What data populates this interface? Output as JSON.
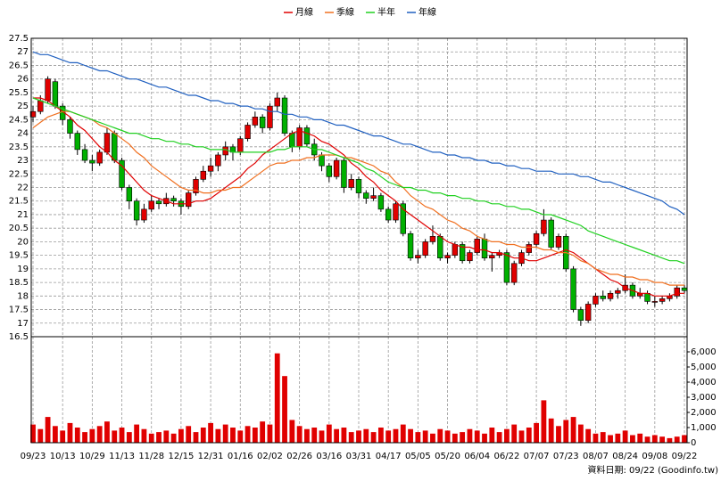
{
  "chart_data": {
    "type": "candlestick",
    "legend": "top",
    "grid": true,
    "up_color": "#e00000",
    "down_color": "#00b000",
    "categories": [
      "09/23",
      null,
      null,
      null,
      "10/13",
      null,
      null,
      null,
      "10/29",
      null,
      null,
      null,
      "11/13",
      null,
      null,
      null,
      "11/28",
      null,
      null,
      null,
      "12/15",
      null,
      null,
      null,
      "12/31",
      null,
      null,
      null,
      "01/16",
      null,
      null,
      null,
      "02/02",
      null,
      null,
      null,
      "02/26",
      null,
      null,
      null,
      "03/16",
      null,
      null,
      null,
      "03/31",
      null,
      null,
      null,
      "04/17",
      null,
      null,
      null,
      "05/05",
      null,
      null,
      null,
      "05/20",
      null,
      null,
      null,
      "06/04",
      null,
      null,
      null,
      "06/22",
      null,
      null,
      null,
      "07/07",
      null,
      null,
      null,
      "07/23",
      null,
      null,
      null,
      "08/07",
      null,
      null,
      null,
      "08/24",
      null,
      null,
      null,
      "09/08",
      null,
      null,
      null,
      "09/22"
    ],
    "ohlc": [
      [
        24.6,
        25.0,
        24.4,
        24.8
      ],
      [
        24.8,
        25.4,
        24.7,
        25.2
      ],
      [
        25.2,
        26.1,
        25.1,
        26.0
      ],
      [
        25.9,
        26.0,
        24.9,
        25.0
      ],
      [
        25.0,
        25.1,
        24.3,
        24.5
      ],
      [
        24.5,
        24.6,
        23.8,
        24.0
      ],
      [
        24.0,
        24.1,
        23.2,
        23.4
      ],
      [
        23.4,
        23.6,
        22.9,
        23.0
      ],
      [
        23.0,
        23.2,
        22.6,
        22.9
      ],
      [
        22.9,
        23.4,
        22.8,
        23.3
      ],
      [
        23.3,
        24.2,
        23.2,
        24.0
      ],
      [
        24.0,
        24.1,
        22.9,
        23.0
      ],
      [
        23.0,
        23.1,
        21.9,
        22.0
      ],
      [
        22.0,
        22.1,
        21.2,
        21.5
      ],
      [
        21.5,
        21.6,
        20.6,
        20.8
      ],
      [
        20.8,
        21.4,
        20.7,
        21.2
      ],
      [
        21.2,
        21.7,
        21.1,
        21.5
      ],
      [
        21.5,
        21.6,
        21.2,
        21.4
      ],
      [
        21.4,
        21.8,
        21.3,
        21.6
      ],
      [
        21.6,
        21.7,
        21.3,
        21.5
      ],
      [
        21.5,
        21.6,
        21.0,
        21.3
      ],
      [
        21.3,
        21.9,
        21.2,
        21.8
      ],
      [
        21.8,
        22.4,
        21.7,
        22.3
      ],
      [
        22.3,
        22.8,
        22.2,
        22.6
      ],
      [
        22.6,
        23.1,
        22.4,
        22.8
      ],
      [
        22.8,
        23.3,
        22.6,
        23.2
      ],
      [
        23.2,
        23.7,
        23.0,
        23.5
      ],
      [
        23.5,
        23.6,
        23.0,
        23.3
      ],
      [
        23.3,
        23.9,
        23.2,
        23.8
      ],
      [
        23.8,
        24.4,
        23.7,
        24.3
      ],
      [
        24.3,
        24.8,
        24.2,
        24.6
      ],
      [
        24.6,
        24.7,
        24.0,
        24.2
      ],
      [
        24.2,
        25.1,
        24.1,
        25.0
      ],
      [
        25.0,
        25.5,
        24.8,
        25.3
      ],
      [
        25.3,
        25.4,
        23.9,
        24.0
      ],
      [
        24.0,
        24.1,
        23.3,
        23.5
      ],
      [
        23.5,
        24.3,
        23.4,
        24.2
      ],
      [
        24.2,
        24.3,
        23.5,
        23.6
      ],
      [
        23.6,
        23.8,
        23.0,
        23.2
      ],
      [
        23.2,
        23.3,
        22.6,
        22.8
      ],
      [
        22.8,
        22.9,
        22.2,
        22.4
      ],
      [
        22.4,
        23.1,
        22.3,
        23.0
      ],
      [
        23.0,
        23.1,
        21.8,
        22.0
      ],
      [
        22.0,
        22.5,
        21.9,
        22.3
      ],
      [
        22.3,
        22.4,
        21.6,
        21.8
      ],
      [
        21.8,
        21.9,
        21.4,
        21.6
      ],
      [
        21.6,
        22.0,
        21.5,
        21.7
      ],
      [
        21.7,
        21.8,
        21.1,
        21.2
      ],
      [
        21.2,
        21.3,
        20.7,
        20.8
      ],
      [
        20.8,
        21.5,
        20.7,
        21.4
      ],
      [
        21.4,
        21.5,
        20.2,
        20.3
      ],
      [
        20.3,
        20.4,
        19.3,
        19.4
      ],
      [
        19.4,
        19.7,
        19.2,
        19.5
      ],
      [
        19.5,
        20.1,
        19.4,
        20.0
      ],
      [
        20.0,
        20.6,
        19.9,
        20.2
      ],
      [
        20.2,
        20.3,
        19.3,
        19.4
      ],
      [
        19.4,
        19.6,
        19.2,
        19.5
      ],
      [
        19.5,
        20.0,
        19.4,
        19.9
      ],
      [
        19.9,
        20.0,
        19.2,
        19.3
      ],
      [
        19.3,
        19.7,
        19.2,
        19.6
      ],
      [
        19.6,
        20.2,
        19.5,
        20.1
      ],
      [
        20.1,
        20.3,
        19.3,
        19.4
      ],
      [
        19.4,
        19.6,
        18.9,
        19.5
      ],
      [
        19.5,
        19.7,
        19.4,
        19.6
      ],
      [
        19.6,
        19.7,
        18.4,
        18.5
      ],
      [
        18.5,
        19.3,
        18.4,
        19.2
      ],
      [
        19.2,
        19.7,
        19.1,
        19.6
      ],
      [
        19.6,
        20.0,
        19.5,
        19.9
      ],
      [
        19.9,
        20.4,
        19.8,
        20.3
      ],
      [
        20.3,
        21.2,
        20.2,
        20.8
      ],
      [
        20.8,
        20.9,
        19.7,
        19.8
      ],
      [
        19.8,
        20.3,
        19.7,
        20.2
      ],
      [
        20.2,
        20.3,
        18.9,
        19.0
      ],
      [
        19.0,
        19.1,
        17.4,
        17.5
      ],
      [
        17.5,
        17.6,
        16.9,
        17.1
      ],
      [
        17.1,
        17.8,
        17.0,
        17.7
      ],
      [
        17.7,
        18.1,
        17.6,
        18.0
      ],
      [
        18.0,
        18.2,
        17.8,
        17.9
      ],
      [
        17.9,
        18.2,
        17.8,
        18.1
      ],
      [
        18.1,
        18.3,
        17.9,
        18.2
      ],
      [
        18.2,
        18.8,
        18.1,
        18.4
      ],
      [
        18.4,
        18.5,
        17.9,
        18.0
      ],
      [
        18.0,
        18.3,
        17.9,
        18.1
      ],
      [
        18.1,
        18.2,
        17.7,
        17.8
      ],
      [
        17.8,
        18.0,
        17.6,
        17.8
      ],
      [
        17.8,
        18.0,
        17.7,
        17.9
      ],
      [
        17.9,
        18.1,
        17.8,
        18.0
      ],
      [
        18.0,
        18.4,
        17.9,
        18.3
      ],
      [
        18.3,
        18.4,
        18.1,
        18.2
      ]
    ],
    "ylim": [
      16.5,
      27.5
    ],
    "yticks": [
      16.5,
      17,
      17.5,
      18,
      18.5,
      19,
      19.5,
      20,
      20.5,
      21,
      21.5,
      22,
      22.5,
      23,
      23.5,
      24,
      24.5,
      25,
      25.5,
      26,
      26.5,
      27,
      27.5
    ],
    "series": [
      {
        "name": "月線",
        "color": "#e00000",
        "values": [
          25.3,
          25.3,
          25.2,
          25.0,
          24.8,
          24.6,
          24.3,
          24.1,
          23.8,
          23.5,
          23.3,
          23.0,
          22.8,
          22.5,
          22.2,
          21.9,
          21.7,
          21.6,
          21.5,
          21.4,
          21.4,
          21.4,
          21.5,
          21.5,
          21.6,
          21.8,
          22.0,
          22.2,
          22.4,
          22.7,
          22.9,
          23.2,
          23.4,
          23.6,
          23.8,
          24.0,
          24.1,
          24.0,
          23.9,
          23.7,
          23.6,
          23.4,
          23.2,
          22.9,
          22.7,
          22.4,
          22.2,
          21.9,
          21.7,
          21.5,
          21.2,
          21.0,
          20.8,
          20.6,
          20.4,
          20.2,
          20.0,
          19.9,
          19.8,
          19.8,
          19.7,
          19.7,
          19.6,
          19.6,
          19.5,
          19.4,
          19.4,
          19.3,
          19.3,
          19.4,
          19.5,
          19.6,
          19.7,
          19.6,
          19.4,
          19.2,
          19.0,
          18.8,
          18.6,
          18.5,
          18.3,
          18.2,
          18.1,
          18.1,
          18.0,
          18.0,
          18.0,
          18.1,
          18.1
        ]
      },
      {
        "name": "季線",
        "color": "#f07020",
        "values": [
          24.2,
          24.4,
          24.6,
          24.7,
          24.8,
          24.8,
          24.7,
          24.6,
          24.5,
          24.3,
          24.2,
          24.0,
          23.8,
          23.6,
          23.3,
          23.1,
          22.8,
          22.6,
          22.4,
          22.2,
          22.0,
          21.9,
          21.9,
          21.8,
          21.8,
          21.9,
          21.9,
          22.0,
          22.0,
          22.2,
          22.4,
          22.6,
          22.8,
          22.9,
          22.9,
          23.0,
          23.0,
          23.1,
          23.1,
          23.2,
          23.2,
          23.2,
          23.1,
          23.1,
          23.0,
          22.9,
          22.8,
          22.6,
          22.5,
          22.2,
          22.0,
          21.7,
          21.5,
          21.3,
          21.2,
          21.0,
          20.8,
          20.7,
          20.5,
          20.4,
          20.2,
          20.1,
          20.0,
          20.0,
          19.9,
          19.9,
          19.8,
          19.8,
          19.8,
          19.7,
          19.7,
          19.6,
          19.6,
          19.5,
          19.3,
          19.2,
          19.0,
          18.9,
          18.8,
          18.8,
          18.7,
          18.7,
          18.6,
          18.6,
          18.5,
          18.5,
          18.4,
          18.4,
          18.4
        ]
      },
      {
        "name": "半年",
        "color": "#20d020",
        "values": [
          25.3,
          25.2,
          25.1,
          25.0,
          24.9,
          24.8,
          24.7,
          24.6,
          24.5,
          24.4,
          24.3,
          24.2,
          24.1,
          24.0,
          24.0,
          23.9,
          23.8,
          23.8,
          23.7,
          23.7,
          23.6,
          23.6,
          23.5,
          23.5,
          23.4,
          23.4,
          23.4,
          23.3,
          23.3,
          23.3,
          23.3,
          23.3,
          23.3,
          23.4,
          23.4,
          23.5,
          23.5,
          23.5,
          23.4,
          23.4,
          23.3,
          23.2,
          23.1,
          23.0,
          22.9,
          22.7,
          22.6,
          22.4,
          22.2,
          22.1,
          22.0,
          22.0,
          21.9,
          21.9,
          21.8,
          21.8,
          21.7,
          21.7,
          21.6,
          21.6,
          21.5,
          21.5,
          21.4,
          21.4,
          21.3,
          21.3,
          21.2,
          21.2,
          21.1,
          21.0,
          21.0,
          20.9,
          20.8,
          20.7,
          20.6,
          20.4,
          20.3,
          20.2,
          20.1,
          20.0,
          19.9,
          19.8,
          19.7,
          19.6,
          19.5,
          19.4,
          19.3,
          19.3,
          19.2
        ]
      },
      {
        "name": "年線",
        "color": "#2060c0",
        "values": [
          27.0,
          26.9,
          26.9,
          26.8,
          26.7,
          26.6,
          26.6,
          26.5,
          26.4,
          26.3,
          26.3,
          26.2,
          26.1,
          26.0,
          26.0,
          25.9,
          25.8,
          25.7,
          25.7,
          25.6,
          25.5,
          25.4,
          25.4,
          25.3,
          25.2,
          25.2,
          25.1,
          25.1,
          25.0,
          25.0,
          24.9,
          24.9,
          24.8,
          24.8,
          24.7,
          24.7,
          24.6,
          24.6,
          24.5,
          24.5,
          24.4,
          24.3,
          24.3,
          24.2,
          24.1,
          24.0,
          23.9,
          23.9,
          23.8,
          23.7,
          23.6,
          23.6,
          23.5,
          23.4,
          23.3,
          23.3,
          23.2,
          23.2,
          23.1,
          23.1,
          23.0,
          23.0,
          22.9,
          22.9,
          22.8,
          22.8,
          22.7,
          22.7,
          22.6,
          22.6,
          22.6,
          22.5,
          22.5,
          22.5,
          22.4,
          22.4,
          22.3,
          22.2,
          22.2,
          22.1,
          22.0,
          21.9,
          21.8,
          21.7,
          21.6,
          21.5,
          21.3,
          21.2,
          21.0
        ]
      }
    ],
    "volume": {
      "color": "#e00000",
      "ylim": [
        0,
        7000
      ],
      "yticks": [
        0,
        {
          "value": 1000,
          "label": "1,000"
        },
        {
          "value": 2000,
          "label": "2,000"
        },
        {
          "value": 3000,
          "label": "3,000"
        },
        {
          "value": 4000,
          "label": "4,000"
        },
        {
          "value": 5000,
          "label": "5,000"
        },
        {
          "value": 6000,
          "label": "6,000"
        }
      ],
      "values": [
        1200,
        900,
        1700,
        1100,
        800,
        1300,
        1000,
        700,
        900,
        1100,
        1400,
        800,
        1000,
        700,
        1200,
        900,
        600,
        700,
        800,
        600,
        900,
        1100,
        700,
        1000,
        1300,
        900,
        1200,
        1000,
        800,
        1100,
        1000,
        1400,
        1200,
        5900,
        4400,
        1500,
        1100,
        900,
        1000,
        800,
        1200,
        900,
        1000,
        700,
        800,
        900,
        700,
        1000,
        800,
        900,
        1200,
        900,
        700,
        800,
        600,
        900,
        800,
        600,
        700,
        900,
        800,
        600,
        1000,
        700,
        900,
        1200,
        800,
        1000,
        1300,
        2800,
        1600,
        1100,
        1500,
        1700,
        1200,
        900,
        600,
        700,
        500,
        600,
        800,
        500,
        600,
        400,
        500,
        400,
        300,
        400,
        500
      ]
    }
  },
  "footer": "資料日期: 09/22 (Goodinfo.tw)"
}
